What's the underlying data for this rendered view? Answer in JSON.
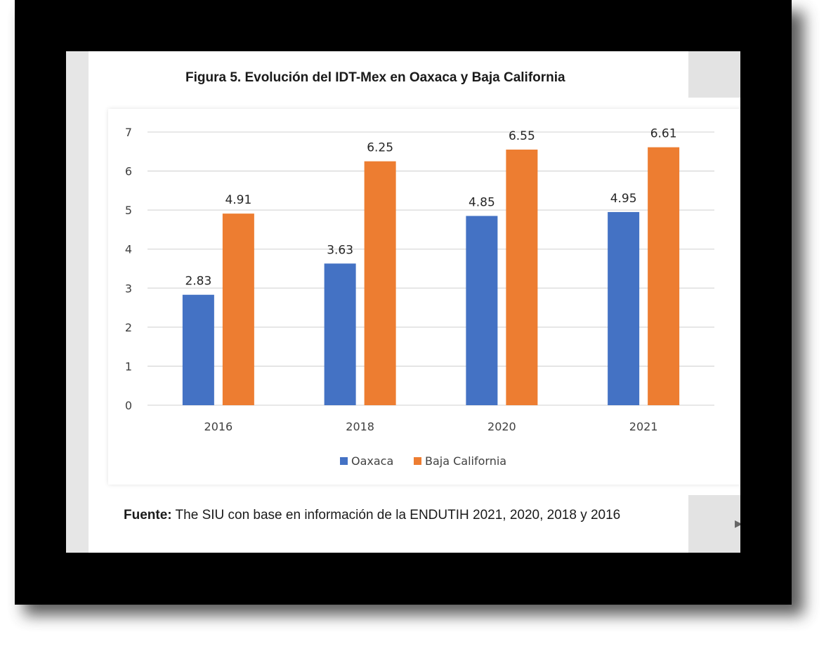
{
  "figure": {
    "title": "Figura 5. Evolución del IDT-Mex en Oaxaca y Baja California"
  },
  "source": {
    "label": "Fuente:",
    "text": " The SIU con base en información de la ENDUTIH 2021, 2020, 2018 y 2016"
  },
  "chart_data": {
    "type": "bar",
    "title": "",
    "xlabel": "",
    "ylabel": "",
    "categories": [
      "2016",
      "2018",
      "2020",
      "2021"
    ],
    "series": [
      {
        "name": "Oaxaca",
        "values": [
          2.83,
          3.63,
          4.85,
          4.95
        ],
        "color": "#4472c4"
      },
      {
        "name": "Baja California",
        "values": [
          4.91,
          6.25,
          6.55,
          6.61
        ],
        "color": "#ed7d31"
      }
    ],
    "ylim": [
      0,
      7
    ],
    "yticks": [
      "0",
      "1",
      "2",
      "3",
      "4",
      "5",
      "6",
      "7"
    ],
    "data_labels": true,
    "grid": true,
    "legend": "bottom",
    "gridline_color": "#d9d9d9",
    "text_color": "#404040"
  },
  "decorations": {
    "arrow_glyph": "▶"
  }
}
